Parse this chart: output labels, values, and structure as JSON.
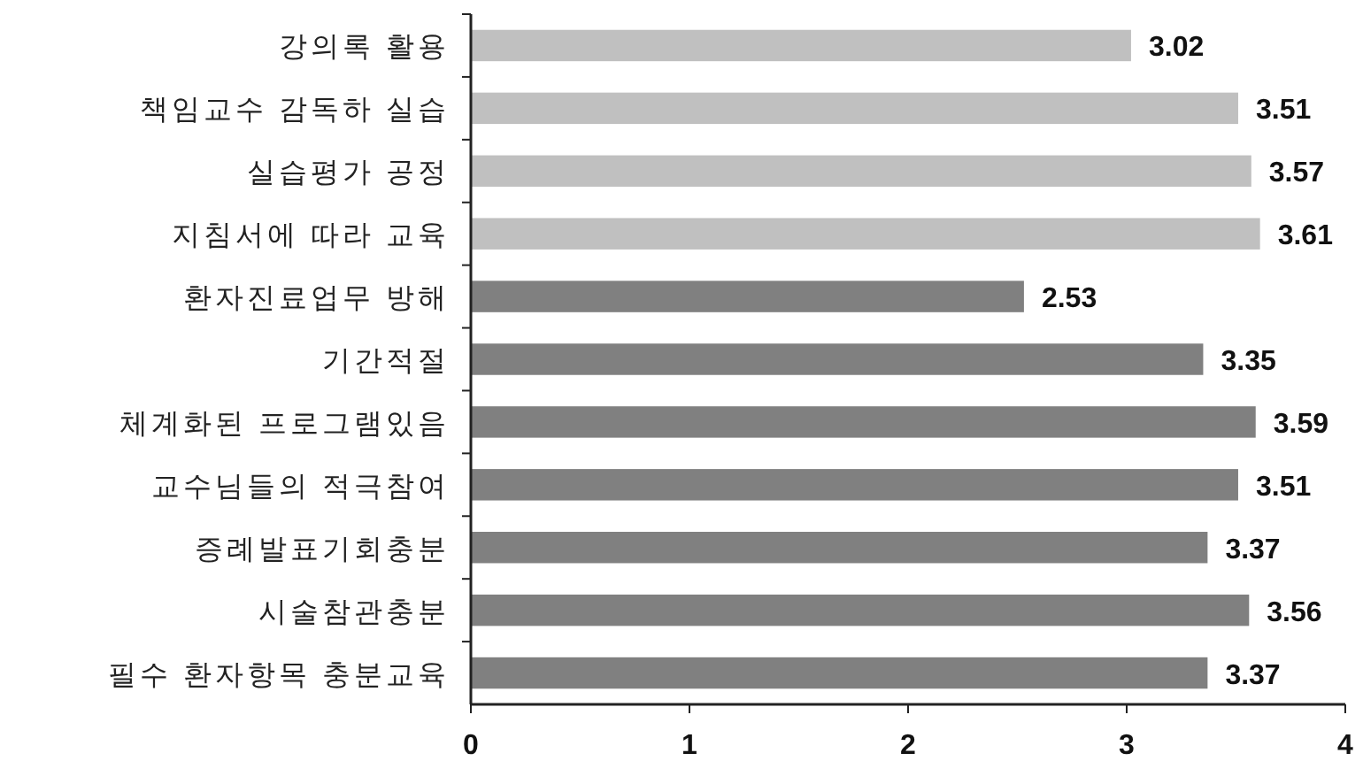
{
  "chart_data": {
    "type": "bar",
    "orientation": "horizontal",
    "categories": [
      "강의록 활용",
      "책임교수 감독하 실습",
      "실습평가 공정",
      "지침서에 따라 교육",
      "환자진료업무 방해",
      "기간적절",
      "체계화된 프로그램있음",
      "교수님들의 적극참여",
      "증례발표기회충분",
      "시술참관충분",
      "필수 환자항목 충분교육"
    ],
    "values": [
      3.02,
      3.51,
      3.57,
      3.61,
      2.53,
      3.35,
      3.59,
      3.51,
      3.37,
      3.56,
      3.37
    ],
    "colors": [
      "#c0c0c0",
      "#c0c0c0",
      "#c0c0c0",
      "#c0c0c0",
      "#808080",
      "#808080",
      "#808080",
      "#808080",
      "#808080",
      "#808080",
      "#808080"
    ],
    "xlim": [
      0,
      4
    ],
    "xticks": [
      0,
      1,
      2,
      3,
      4
    ],
    "data_labels": true
  }
}
